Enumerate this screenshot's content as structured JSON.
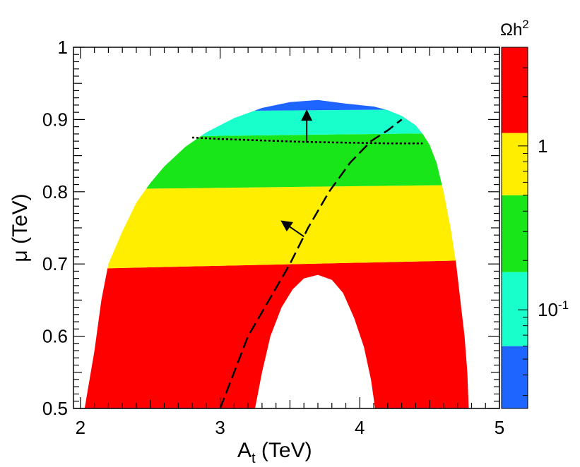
{
  "chart_data": {
    "type": "heatmap",
    "title": "",
    "xlabel": {
      "main": "A",
      "sub": "t",
      "unit": " (TeV)"
    },
    "ylabel": "μ (TeV)",
    "xlim": [
      1.95,
      5.0
    ],
    "ylim": [
      0.5,
      1.0
    ],
    "x_ticks": [
      {
        "value": 2,
        "label": "2"
      },
      {
        "value": 3,
        "label": "3"
      },
      {
        "value": 4,
        "label": "4"
      },
      {
        "value": 5,
        "label": "5"
      }
    ],
    "y_ticks": [
      {
        "value": 0.5,
        "label": "0.5"
      },
      {
        "value": 0.6,
        "label": "0.6"
      },
      {
        "value": 0.7,
        "label": "0.7"
      },
      {
        "value": 0.8,
        "label": "0.8"
      },
      {
        "value": 0.9,
        "label": "0.9"
      },
      {
        "value": 1.0,
        "label": "1"
      }
    ],
    "colorbar": {
      "title": {
        "main": "Ωh",
        "sup": "2"
      },
      "scale": "log",
      "range": [
        0.025,
        4.0
      ],
      "bands": [
        {
          "from": 0.025,
          "to": 0.06,
          "color": "#1e64ff"
        },
        {
          "from": 0.06,
          "to": 0.17,
          "color": "#19ffcc"
        },
        {
          "from": 0.17,
          "to": 0.5,
          "color": "#19e619"
        },
        {
          "from": 0.5,
          "to": 1.2,
          "color": "#ffee00"
        },
        {
          "from": 1.2,
          "to": 4.0,
          "color": "#ff0000"
        }
      ],
      "labels": [
        {
          "value": 1,
          "text": "1"
        },
        {
          "value": 0.1,
          "text": "10",
          "sup": "-1"
        }
      ]
    },
    "region": {
      "left_boundary": [
        [
          2.03,
          0.5
        ],
        [
          2.1,
          0.58
        ],
        [
          2.15,
          0.65
        ],
        [
          2.2,
          0.7
        ],
        [
          2.3,
          0.745
        ],
        [
          2.4,
          0.785
        ],
        [
          2.5,
          0.812
        ],
        [
          2.6,
          0.835
        ],
        [
          2.75,
          0.862
        ],
        [
          2.9,
          0.882
        ],
        [
          3.1,
          0.902
        ],
        [
          3.3,
          0.916
        ],
        [
          3.5,
          0.924
        ],
        [
          3.7,
          0.927
        ],
        [
          3.9,
          0.922
        ]
      ],
      "right_boundary": [
        [
          4.78,
          0.5
        ],
        [
          4.77,
          0.55
        ],
        [
          4.75,
          0.6
        ],
        [
          4.72,
          0.65
        ],
        [
          4.69,
          0.7
        ],
        [
          4.65,
          0.75
        ],
        [
          4.6,
          0.8
        ],
        [
          4.55,
          0.84
        ],
        [
          4.5,
          0.865
        ],
        [
          4.45,
          0.88
        ],
        [
          4.4,
          0.892
        ],
        [
          4.3,
          0.905
        ],
        [
          4.2,
          0.913
        ],
        [
          4.1,
          0.918
        ],
        [
          3.9,
          0.922
        ]
      ],
      "hole": [
        [
          3.25,
          0.5
        ],
        [
          3.3,
          0.55
        ],
        [
          3.36,
          0.6
        ],
        [
          3.44,
          0.64
        ],
        [
          3.52,
          0.665
        ],
        [
          3.6,
          0.68
        ],
        [
          3.7,
          0.685
        ],
        [
          3.8,
          0.678
        ],
        [
          3.88,
          0.66
        ],
        [
          3.96,
          0.625
        ],
        [
          4.03,
          0.585
        ],
        [
          4.08,
          0.54
        ],
        [
          4.11,
          0.5
        ]
      ],
      "band_boundaries": [
        {
          "between": [
            "#ff0000",
            "#ffee00"
          ],
          "y_left": 0.693,
          "y_right": 0.706
        },
        {
          "between": [
            "#ffee00",
            "#19e619"
          ],
          "y_left": 0.803,
          "y_right": 0.81
        },
        {
          "between": [
            "#19e619",
            "#19ffcc"
          ],
          "y_left": 0.875,
          "y_right": 0.882
        },
        {
          "between": [
            "#19ffcc",
            "#1e64ff"
          ],
          "y_left": 0.91,
          "y_right": 0.915
        }
      ]
    },
    "series": [
      {
        "name": "dashed-constraint",
        "style": "long-dash",
        "points": [
          [
            3.0,
            0.5
          ],
          [
            3.1,
            0.55
          ],
          [
            3.2,
            0.6
          ],
          [
            3.35,
            0.65
          ],
          [
            3.5,
            0.7
          ],
          [
            3.63,
            0.75
          ],
          [
            3.78,
            0.8
          ],
          [
            3.93,
            0.84
          ],
          [
            4.08,
            0.87
          ],
          [
            4.2,
            0.885
          ],
          [
            4.3,
            0.9
          ]
        ]
      },
      {
        "name": "dotted-constraint",
        "style": "dotted",
        "points": [
          [
            2.8,
            0.875
          ],
          [
            3.0,
            0.873
          ],
          [
            3.3,
            0.871
          ],
          [
            3.6,
            0.869
          ],
          [
            3.9,
            0.868
          ],
          [
            4.2,
            0.867
          ],
          [
            4.45,
            0.867
          ]
        ]
      }
    ],
    "annotations": [
      {
        "name": "arrow-up",
        "from": [
          3.62,
          0.868
        ],
        "to": [
          3.62,
          0.91
        ]
      },
      {
        "name": "arrow-left",
        "from": [
          3.6,
          0.738
        ],
        "to": [
          3.45,
          0.758
        ]
      }
    ]
  }
}
